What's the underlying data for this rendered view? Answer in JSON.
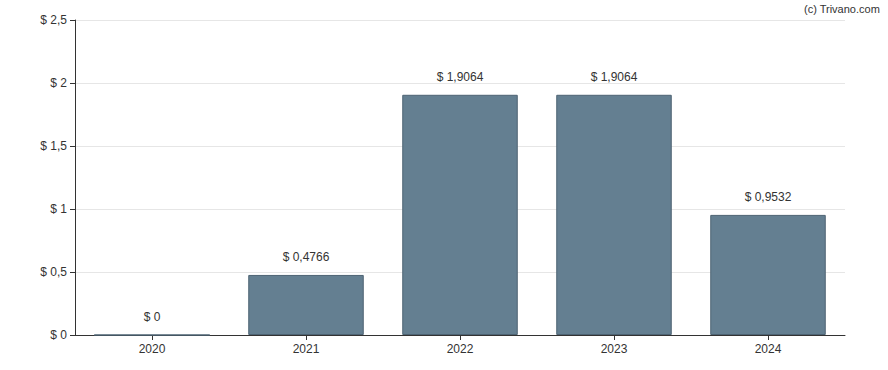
{
  "chart_data": {
    "type": "bar",
    "annotation": "(c) Trivano.com",
    "categories": [
      "2020",
      "2021",
      "2022",
      "2023",
      "2024"
    ],
    "values": [
      0,
      0.4766,
      1.9064,
      1.9064,
      0.9532
    ],
    "value_labels": [
      "$ 0",
      "$ 0,4766",
      "$ 1,9064",
      "$ 1,9064",
      "$ 0,9532"
    ],
    "color": "#647f91",
    "ylim": [
      0,
      2.5
    ],
    "yticks": [
      {
        "value": 0,
        "label": "$ 0"
      },
      {
        "value": 0.5,
        "label": "$ 0,5"
      },
      {
        "value": 1,
        "label": "$ 1"
      },
      {
        "value": 1.5,
        "label": "$ 1,5"
      },
      {
        "value": 2,
        "label": "$ 2"
      },
      {
        "value": 2.5,
        "label": "$ 2,5"
      }
    ],
    "grid": true,
    "data_labels": true
  }
}
